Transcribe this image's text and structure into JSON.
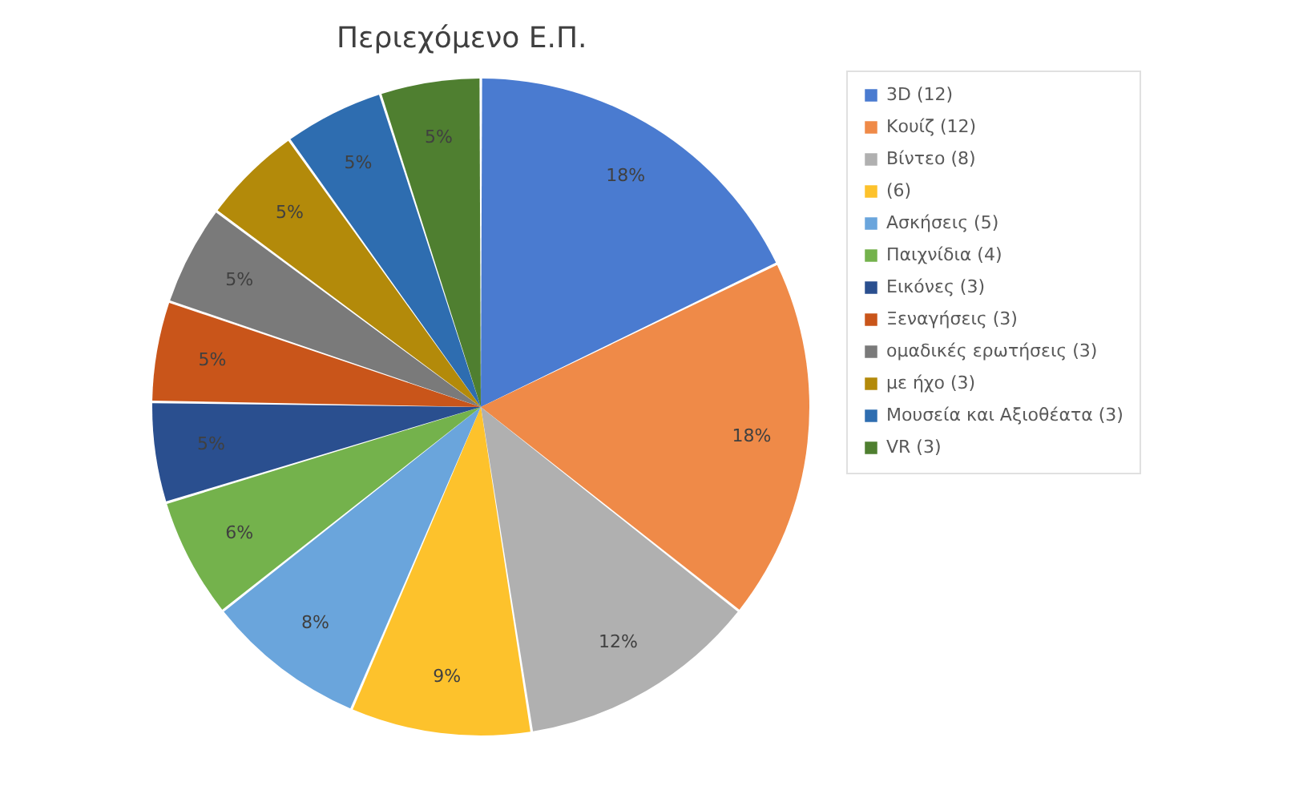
{
  "chart_data": {
    "type": "pie",
    "title": "Περιεχόμενο Ε.Π.",
    "categories": [
      "3D (12)",
      "Κουίζ (12)",
      "Βίντεο (8)",
      "(6)",
      "Ασκήσεις (5)",
      "Παιχνίδια (4)",
      "Εικόνες (3)",
      "Ξεναγήσεις (3)",
      "ομαδικές ερωτήσεις (3)",
      "με ήχο (3)",
      "Μουσεία και Αξιοθέατα (3)",
      "VR (3)"
    ],
    "values": [
      18,
      18,
      12,
      9,
      8,
      6,
      5,
      5,
      5,
      5,
      5,
      5
    ],
    "value_labels": [
      "18%",
      "18%",
      "12%",
      "9%",
      "8%",
      "6%",
      "5%",
      "5%",
      "5%",
      "5%",
      "5%",
      "5%"
    ],
    "colors": [
      "#4a7bd0",
      "#ef8a48",
      "#b0b0b0",
      "#fdc22c",
      "#6aa5dc",
      "#74b24c",
      "#2a4f8f",
      "#c9551a",
      "#7a7a7a",
      "#b38a0a",
      "#2e6db0",
      "#4f7f30"
    ],
    "legend": "right"
  }
}
